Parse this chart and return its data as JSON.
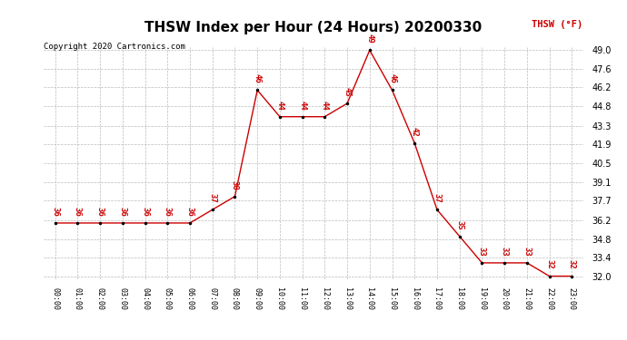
{
  "title": "THSW Index per Hour (24 Hours) 20200330",
  "copyright": "Copyright 2020 Cartronics.com",
  "legend_label": "THSW (°F)",
  "hours": [
    0,
    1,
    2,
    3,
    4,
    5,
    6,
    7,
    8,
    9,
    10,
    11,
    12,
    13,
    14,
    15,
    16,
    17,
    18,
    19,
    20,
    21,
    22,
    23
  ],
  "values": [
    36,
    36,
    36,
    36,
    36,
    36,
    36,
    37,
    38,
    46,
    44,
    44,
    44,
    45,
    49,
    46,
    42,
    37,
    35,
    33,
    33,
    33,
    32,
    32
  ],
  "ylim_min": 32.0,
  "ylim_max": 49.0,
  "yticks": [
    32.0,
    33.4,
    34.8,
    36.2,
    37.7,
    39.1,
    40.5,
    41.9,
    43.3,
    44.8,
    46.2,
    47.6,
    49.0
  ],
  "line_color": "#cc0000",
  "marker_color": "black",
  "label_color": "#cc0000",
  "grid_color": "#bbbbbb",
  "background_color": "white",
  "title_fontsize": 11,
  "tick_fontsize": 7,
  "label_fontsize": 6.5,
  "copyright_fontsize": 6.5
}
